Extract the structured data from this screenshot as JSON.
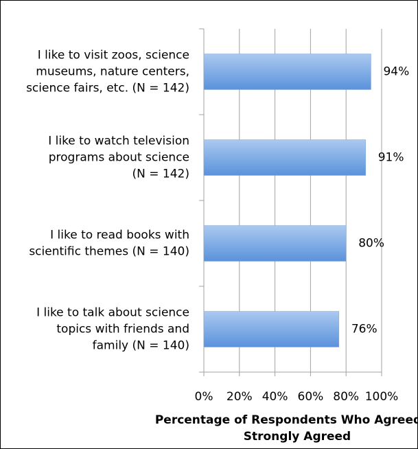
{
  "chart_data": {
    "type": "bar",
    "orientation": "horizontal",
    "categories": [
      [
        "I like to visit zoos, science",
        "museums, nature centers,",
        "science fairs, etc. (N = 142)"
      ],
      [
        "I like to watch television",
        "programs about science",
        "(N = 142)"
      ],
      [
        "I like to read books with",
        "scientific themes (N = 140)"
      ],
      [
        "I like to talk about science",
        "topics with friends and",
        "family (N = 140)"
      ]
    ],
    "values": [
      94,
      91,
      80,
      76
    ],
    "value_labels": [
      "94%",
      "91%",
      "80%",
      "76%"
    ],
    "color": [
      "#abc9f0",
      "#5a92dc"
    ],
    "xlim": [
      0,
      100
    ],
    "xticks": [
      {
        "value": 0,
        "label": "0%"
      },
      {
        "value": 20,
        "label": "20%"
      },
      {
        "value": 40,
        "label": "40%"
      },
      {
        "value": 60,
        "label": "60%"
      },
      {
        "value": 80,
        "label": "80%"
      },
      {
        "value": 100,
        "label": "100%"
      }
    ],
    "x_label": [
      "Percentage of Respondents Who Agreed or",
      "Strongly Agreed"
    ],
    "grid": true
  }
}
